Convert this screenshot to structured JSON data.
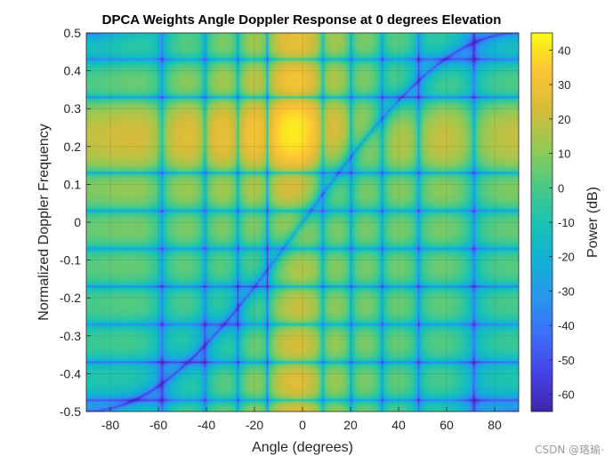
{
  "chart_data": {
    "type": "heatmap",
    "title": "DPCA Weights Angle Doppler Response at 0 degrees Elevation",
    "xlabel": "Angle (degrees)",
    "ylabel": "Normalized Doppler Frequency",
    "xlim": [
      -90,
      90
    ],
    "ylim": [
      -0.5,
      0.5
    ],
    "x_ticks": [
      "-80",
      "-60",
      "-40",
      "-20",
      "0",
      "20",
      "40",
      "60",
      "80"
    ],
    "y_ticks": [
      "0.5",
      "0.4",
      "0.3",
      "0.2",
      "0.1",
      "0",
      "-0.1",
      "-0.2",
      "-0.3",
      "-0.4",
      "-0.5"
    ],
    "colorbar": {
      "label": "Power (dB)",
      "range": [
        -65,
        45
      ],
      "ticks": [
        "40",
        "30",
        "20",
        "10",
        "0",
        "-10",
        "-20",
        "-30",
        "-40",
        "-50",
        "-60"
      ],
      "colormap": "parula"
    },
    "grid": true,
    "peak": {
      "angle": -3,
      "doppler": 0.23,
      "power_db": 42
    },
    "null_notch": "clutter ridge along doppler = 0.5 * sin(angle)",
    "vertical_nulls_deg": [
      -90,
      -53.6,
      -41.2,
      -30.4,
      -20.5,
      -11.6,
      11.6,
      20.5,
      30.4,
      41.2,
      53.6,
      90
    ],
    "horizontal_nulls_doppler": [
      -0.5,
      -0.457,
      -0.34,
      -0.23,
      -0.12,
      0.1,
      0.32,
      0.43,
      0.5
    ]
  },
  "watermark": "CSDN @珞瑜·"
}
